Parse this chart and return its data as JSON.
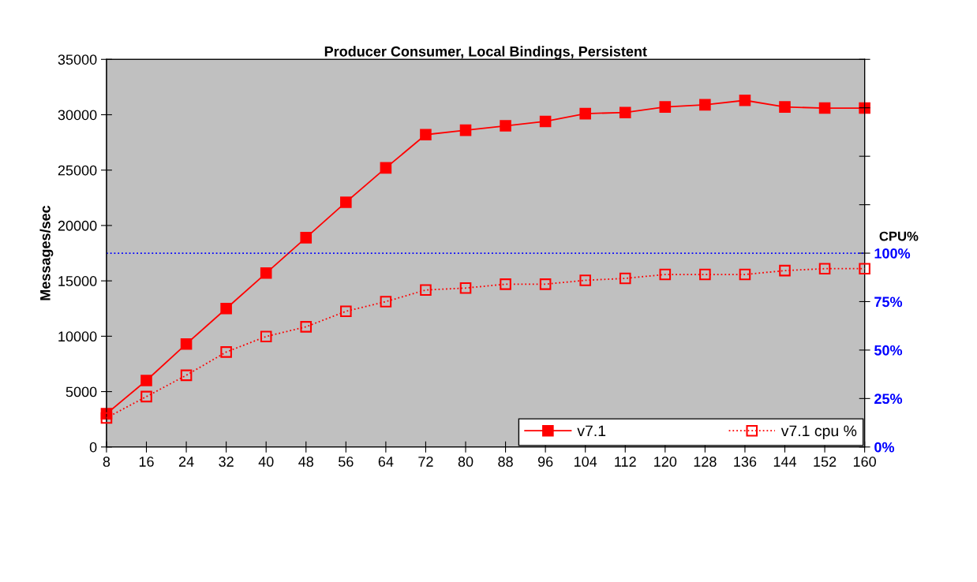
{
  "chart_data": {
    "type": "line",
    "title": "Producer Consumer, Local Bindings, Persistent",
    "ylabel": "Messages/sec",
    "y2label": "CPU%",
    "x": [
      8,
      16,
      24,
      32,
      40,
      48,
      56,
      64,
      72,
      80,
      88,
      96,
      104,
      112,
      120,
      128,
      136,
      144,
      152,
      160
    ],
    "series": [
      {
        "name": "v7.1",
        "color": "#ff0000",
        "marker": "square",
        "line_style": "solid",
        "values": [
          3000,
          6000,
          9300,
          12500,
          15700,
          18900,
          22100,
          25200,
          28200,
          28600,
          29000,
          29400,
          30100,
          30200,
          30700,
          30900,
          31300,
          30700,
          30600,
          30600
        ]
      },
      {
        "name": "v7.1 cpu %",
        "color": "#ff0000",
        "marker": "square",
        "line_style": "dotted",
        "axis": "y2",
        "values": [
          15,
          26,
          37,
          49,
          57,
          62,
          70,
          75,
          81,
          82,
          84,
          84,
          86,
          87,
          89,
          89,
          89,
          91,
          92,
          92
        ]
      }
    ],
    "xlim": [
      8,
      160
    ],
    "xticks": [
      8,
      16,
      24,
      32,
      40,
      48,
      56,
      64,
      72,
      80,
      88,
      96,
      104,
      112,
      120,
      128,
      136,
      144,
      152,
      160
    ],
    "ylim": [
      0,
      35000
    ],
    "yticks": [
      0,
      5000,
      10000,
      15000,
      20000,
      25000,
      30000,
      35000
    ],
    "y2lim": [
      0,
      200
    ],
    "y2ticks": [
      {
        "value": 0,
        "label": "0%"
      },
      {
        "value": 25,
        "label": "25%"
      },
      {
        "value": 50,
        "label": "50%"
      },
      {
        "value": 75,
        "label": "75%"
      },
      {
        "value": 100,
        "label": "100%"
      },
      {
        "value": 125,
        "label": null
      },
      {
        "value": 150,
        "label": null
      },
      {
        "value": 175,
        "label": null
      },
      {
        "value": 200,
        "label": null
      }
    ],
    "ref_lines": [
      {
        "axis": "y2",
        "value": 100,
        "color": "#0000ff",
        "line_style": "dotted"
      }
    ],
    "grid": false,
    "legend": "bottom right"
  }
}
